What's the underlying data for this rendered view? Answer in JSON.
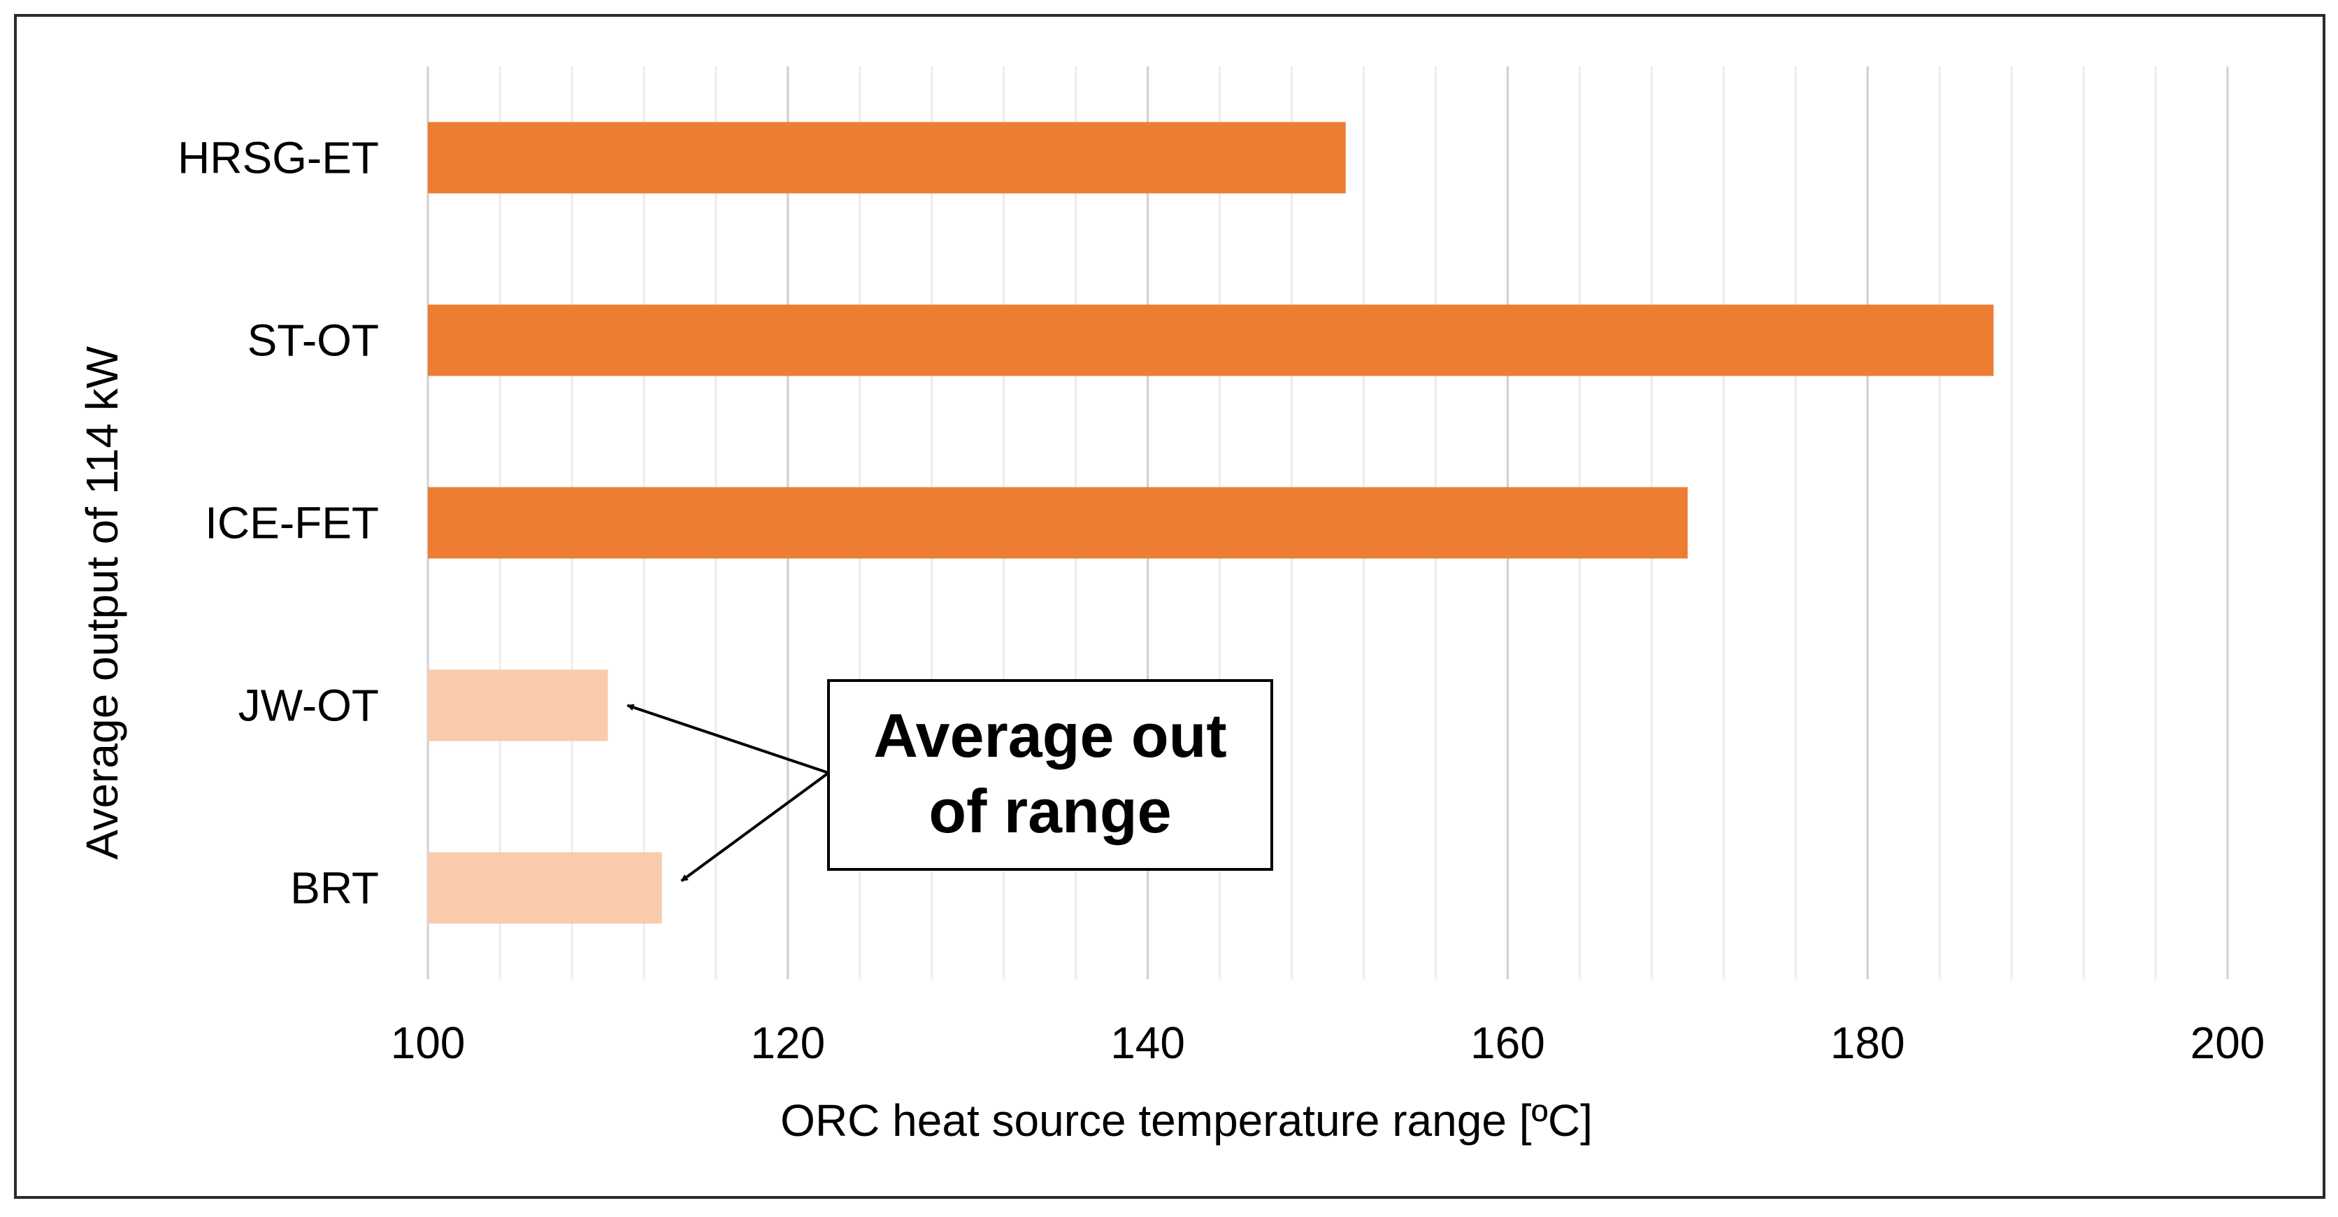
{
  "chart_data": {
    "type": "bar",
    "orientation": "horizontal",
    "categories": [
      "HRSG-ET",
      "ST-OT",
      "ICE-FET",
      "JW-OT",
      "BRT"
    ],
    "values": [
      151,
      187,
      170,
      110,
      113
    ],
    "in_range": [
      true,
      true,
      true,
      false,
      false
    ],
    "baseline": 100,
    "xlim": [
      100,
      200
    ],
    "major_ticks": [
      100,
      120,
      140,
      160,
      180,
      200
    ],
    "minor_step": 4,
    "grid": "vertical",
    "xlabel": "ORC heat source temperature range [ºC]",
    "ylabel": "Average output of 114 kW",
    "colors": {
      "in_range": "#ED7D31",
      "out_of_range": "#F8CBAD"
    },
    "annotation": {
      "lines": [
        "Average out",
        "of range"
      ],
      "targets": [
        "JW-OT",
        "BRT"
      ]
    }
  }
}
